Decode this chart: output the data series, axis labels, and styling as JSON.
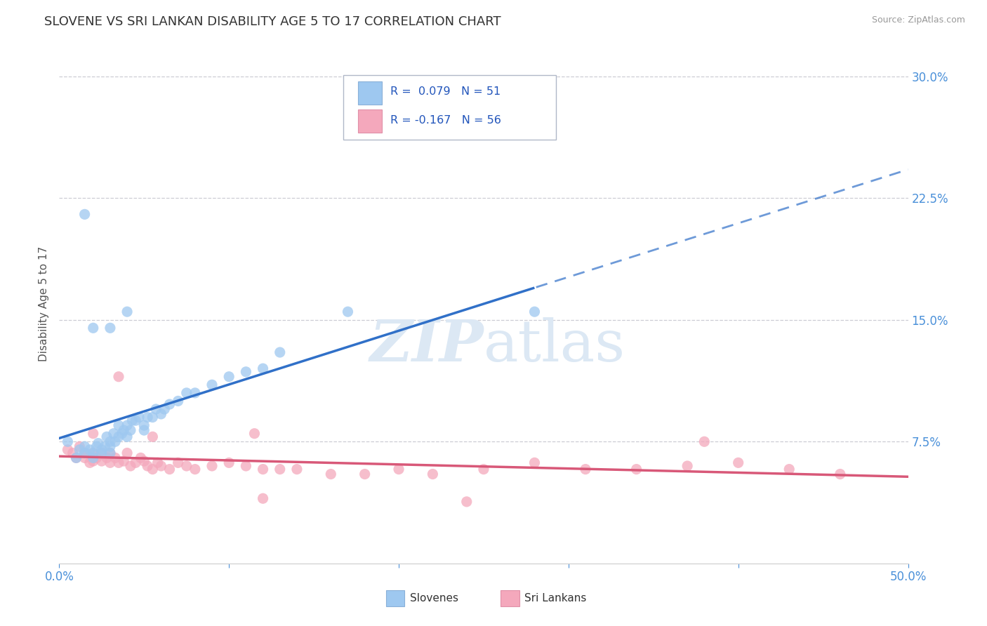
{
  "title": "SLOVENE VS SRI LANKAN DISABILITY AGE 5 TO 17 CORRELATION CHART",
  "source": "Source: ZipAtlas.com",
  "ylabel": "Disability Age 5 to 17",
  "xlim": [
    0.0,
    0.5
  ],
  "ylim": [
    0.0,
    0.32
  ],
  "r_slovene": 0.079,
  "n_slovene": 51,
  "r_srilankan": -0.167,
  "n_srilankan": 56,
  "color_slovene": "#9EC8F0",
  "color_srilankan": "#F4A8BC",
  "line_color_slovene": "#3070C8",
  "line_color_srilankan": "#D85878",
  "background_color": "#ffffff",
  "grid_color": "#c8c8d0",
  "watermark_color": "#dce8f4",
  "slovene_x": [
    0.005,
    0.01,
    0.012,
    0.015,
    0.015,
    0.018,
    0.02,
    0.02,
    0.022,
    0.023,
    0.025,
    0.025,
    0.027,
    0.028,
    0.03,
    0.03,
    0.03,
    0.032,
    0.033,
    0.035,
    0.035,
    0.037,
    0.038,
    0.04,
    0.04,
    0.042,
    0.043,
    0.045,
    0.047,
    0.05,
    0.05,
    0.052,
    0.055,
    0.057,
    0.06,
    0.062,
    0.065,
    0.07,
    0.075,
    0.08,
    0.09,
    0.1,
    0.11,
    0.12,
    0.13,
    0.015,
    0.02,
    0.03,
    0.04,
    0.17,
    0.28
  ],
  "slovene_y": [
    0.075,
    0.065,
    0.07,
    0.068,
    0.072,
    0.07,
    0.068,
    0.065,
    0.072,
    0.074,
    0.07,
    0.068,
    0.072,
    0.078,
    0.075,
    0.072,
    0.068,
    0.08,
    0.075,
    0.078,
    0.085,
    0.08,
    0.082,
    0.078,
    0.085,
    0.082,
    0.088,
    0.088,
    0.09,
    0.085,
    0.082,
    0.09,
    0.09,
    0.095,
    0.092,
    0.095,
    0.098,
    0.1,
    0.105,
    0.105,
    0.11,
    0.115,
    0.118,
    0.12,
    0.13,
    0.215,
    0.145,
    0.145,
    0.155,
    0.155,
    0.155
  ],
  "srilankan_x": [
    0.005,
    0.008,
    0.01,
    0.012,
    0.015,
    0.015,
    0.018,
    0.02,
    0.02,
    0.022,
    0.025,
    0.025,
    0.028,
    0.03,
    0.03,
    0.033,
    0.035,
    0.038,
    0.04,
    0.042,
    0.045,
    0.048,
    0.05,
    0.052,
    0.055,
    0.058,
    0.06,
    0.065,
    0.07,
    0.075,
    0.08,
    0.09,
    0.1,
    0.11,
    0.12,
    0.13,
    0.14,
    0.16,
    0.18,
    0.2,
    0.22,
    0.25,
    0.28,
    0.31,
    0.34,
    0.37,
    0.4,
    0.43,
    0.46,
    0.02,
    0.035,
    0.055,
    0.115,
    0.12,
    0.24,
    0.38
  ],
  "srilankan_y": [
    0.07,
    0.068,
    0.065,
    0.072,
    0.068,
    0.065,
    0.062,
    0.068,
    0.063,
    0.065,
    0.068,
    0.063,
    0.065,
    0.068,
    0.062,
    0.065,
    0.062,
    0.063,
    0.068,
    0.06,
    0.062,
    0.065,
    0.063,
    0.06,
    0.058,
    0.062,
    0.06,
    0.058,
    0.062,
    0.06,
    0.058,
    0.06,
    0.062,
    0.06,
    0.058,
    0.058,
    0.058,
    0.055,
    0.055,
    0.058,
    0.055,
    0.058,
    0.062,
    0.058,
    0.058,
    0.06,
    0.062,
    0.058,
    0.055,
    0.08,
    0.115,
    0.078,
    0.08,
    0.04,
    0.038,
    0.075
  ],
  "legend_slovene": "Slovenes",
  "legend_srilankan": "Sri Lankans"
}
